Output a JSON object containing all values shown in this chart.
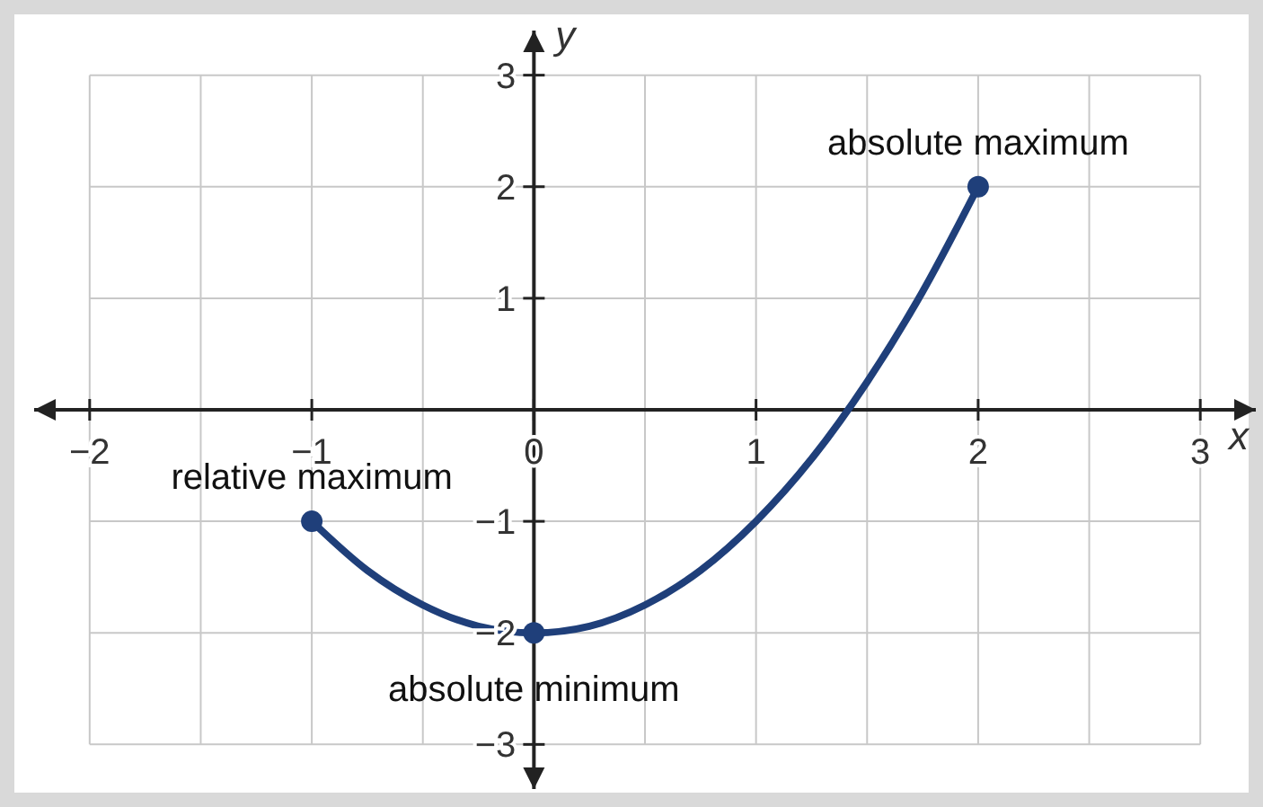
{
  "chart_data": {
    "type": "line",
    "xlabel": "x",
    "ylabel": "y",
    "xlim": [
      -2.25,
      3.25
    ],
    "ylim": [
      -3.4,
      3.4
    ],
    "xticks": [
      {
        "value": -2,
        "label": "−2"
      },
      {
        "value": -1.5,
        "label": null
      },
      {
        "value": -1,
        "label": "−1"
      },
      {
        "value": -0.5,
        "label": null
      },
      {
        "value": 0,
        "label": "0"
      },
      {
        "value": 0.5,
        "label": null
      },
      1,
      {
        "value": 1.5,
        "label": null
      },
      2,
      {
        "value": 2.5,
        "label": null
      },
      3
    ],
    "yticks": [
      {
        "value": -3,
        "label": "−3"
      },
      {
        "value": -2,
        "label": "−2"
      },
      {
        "value": -1,
        "label": "−1"
      },
      1,
      2,
      3
    ],
    "grid": true,
    "series": [
      {
        "color": "#1f3f7a",
        "marker": "none",
        "x": [
          -1,
          -0.75,
          -0.5,
          -0.25,
          0,
          0.25,
          0.5,
          0.75,
          1,
          1.25,
          1.5,
          1.75,
          2
        ],
        "values": [
          -1,
          -1.44,
          -1.75,
          -1.94,
          -2,
          -1.94,
          -1.75,
          -1.44,
          -1,
          -0.44,
          0.25,
          1.06,
          2
        ]
      },
      {
        "type": "scatter",
        "color": "#1f3f7a",
        "marker": "circle",
        "x": [
          -1,
          0,
          2
        ],
        "values": [
          -1,
          -2,
          2
        ]
      }
    ],
    "annotations": [
      {
        "text": "relative maximum",
        "x": -1,
        "y": -1
      },
      {
        "text": "absolute minimum",
        "x": 0,
        "y": -2
      },
      {
        "text": "absolute maximum",
        "x": 2,
        "y": 2
      }
    ]
  }
}
